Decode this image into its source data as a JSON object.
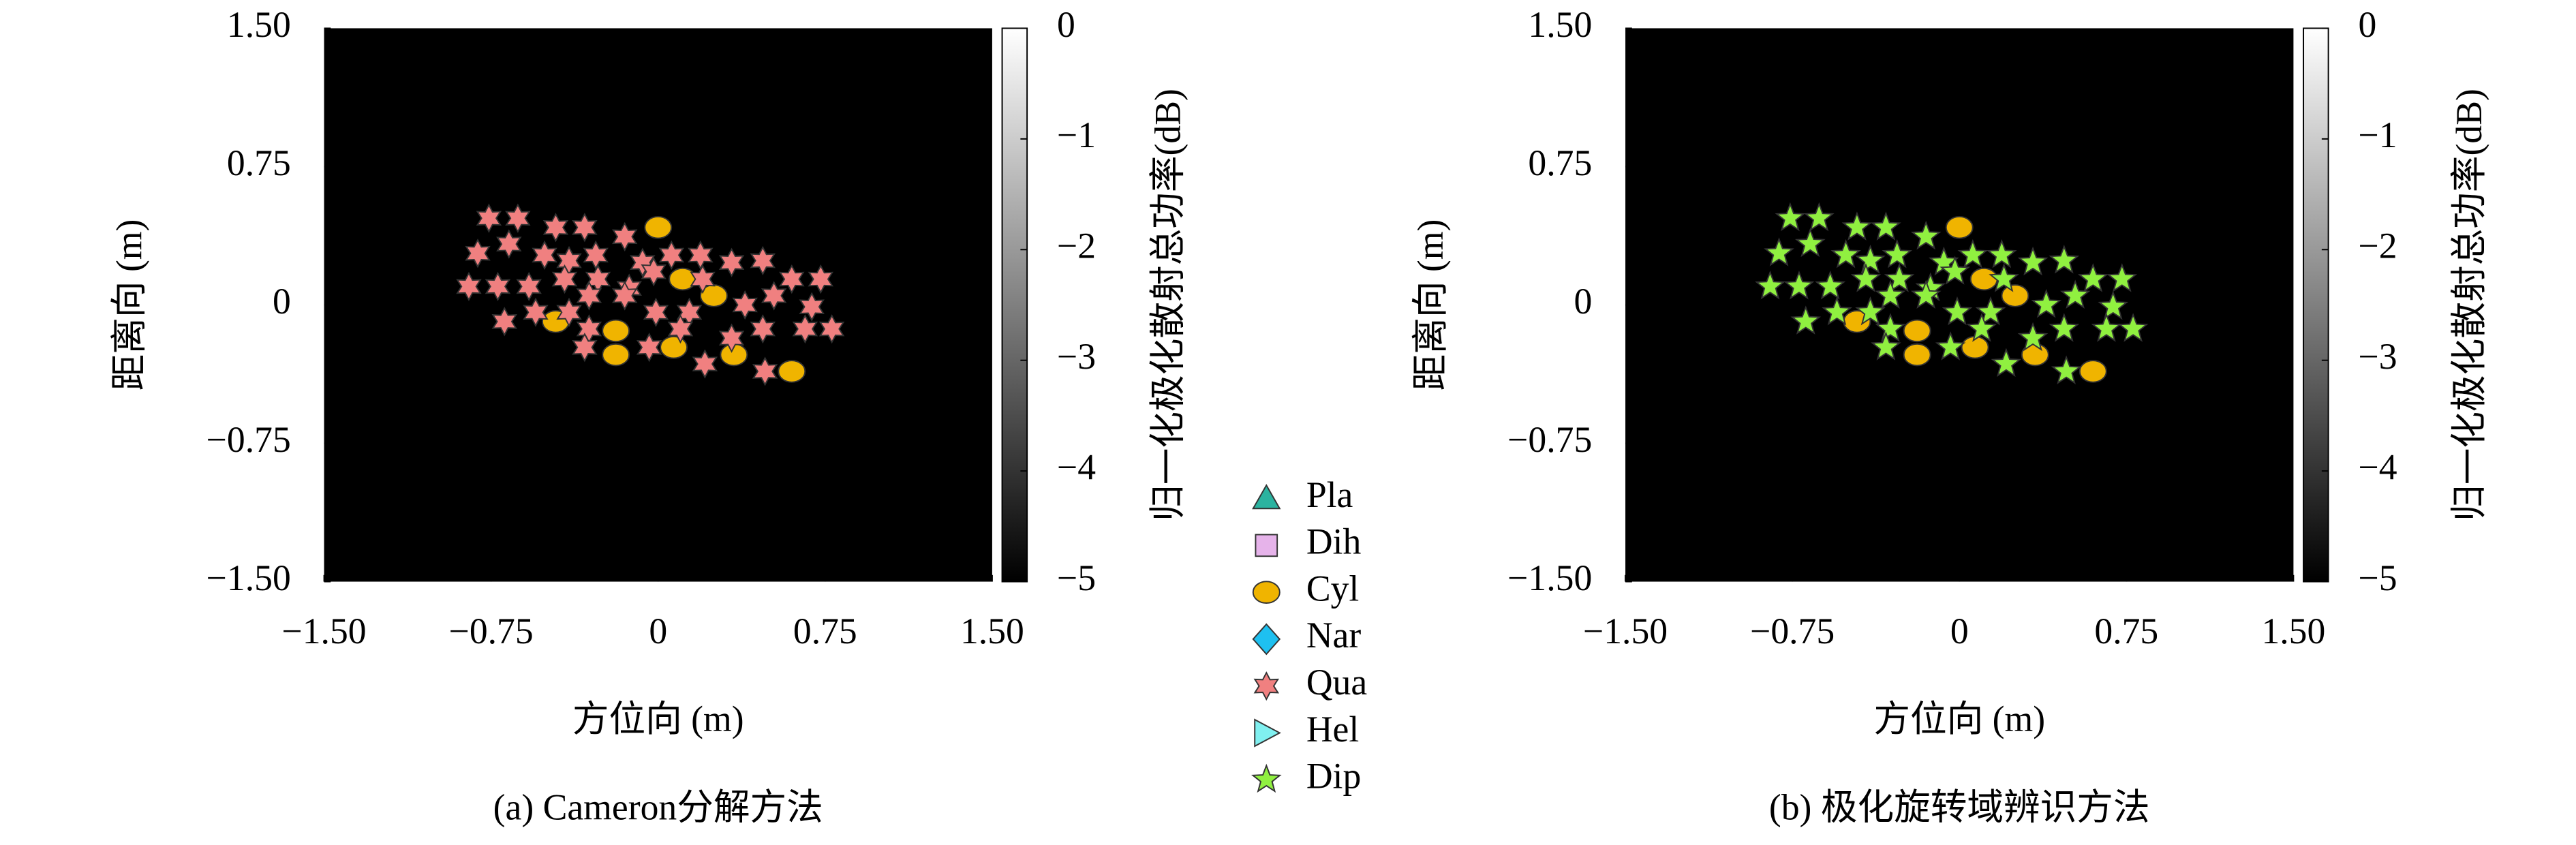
{
  "chart_data": [
    {
      "type": "scatter",
      "title": "(a) Cameron分解方法",
      "xlabel": "方位向 (m)",
      "ylabel": "距离向 (m)",
      "colorbar_label": "归一化极化散射总功率(dB)",
      "xlim": [
        -1.5,
        1.5
      ],
      "ylim": [
        -1.5,
        1.5
      ],
      "xticks": [
        {
          "value": -1.5,
          "label": "−1.50"
        },
        {
          "value": -0.75,
          "label": "−0.75"
        },
        0,
        0.75,
        {
          "value": 1.5,
          "label": "1.50"
        }
      ],
      "yticks": [
        {
          "value": -1.5,
          "label": "−1.50"
        },
        {
          "value": -0.75,
          "label": "−0.75"
        },
        0,
        0.75,
        {
          "value": 1.5,
          "label": "1.50"
        }
      ],
      "clim": [
        -5,
        0
      ],
      "cticks": [
        0,
        {
          "value": -1,
          "label": "−1"
        },
        {
          "value": -2,
          "label": "−2"
        },
        {
          "value": -3,
          "label": "−3"
        },
        {
          "value": -4,
          "label": "−4"
        },
        {
          "value": -5,
          "label": "−5"
        }
      ],
      "background": "#000000",
      "legend": true,
      "series": [
        {
          "name": "Pla",
          "color": "#2bb3a0",
          "marker": "triangle",
          "x": [],
          "y": []
        },
        {
          "name": "Dih",
          "color": "#e6b3ea",
          "marker": "square",
          "x": [],
          "y": []
        },
        {
          "name": "Cyl",
          "color": "#f0b400",
          "marker": "circle",
          "x": [
            0.0,
            0.11,
            0.25,
            -0.46,
            -0.19,
            -0.19,
            0.07,
            0.34,
            0.6
          ],
          "y": [
            0.42,
            0.14,
            0.05,
            -0.09,
            -0.14,
            -0.27,
            -0.23,
            -0.27,
            -0.36
          ]
        },
        {
          "name": "Nar",
          "color": "#1ec0f0",
          "marker": "diamond",
          "x": [],
          "y": []
        },
        {
          "name": "Qua",
          "color": "#f08080",
          "marker": "star6",
          "x": [
            -0.76,
            -0.63,
            -0.46,
            -0.33,
            -0.15,
            -0.81,
            -0.67,
            -0.51,
            -0.4,
            -0.28,
            -0.07,
            0.06,
            0.19,
            0.33,
            0.47,
            -0.72,
            -0.58,
            -0.42,
            -0.27,
            -0.13,
            -0.02,
            0.2,
            0.6,
            0.73,
            -0.85,
            -0.55,
            -0.4,
            -0.31,
            -0.15,
            -0.01,
            0.14,
            0.39,
            0.52,
            0.69,
            -0.69,
            -0.31,
            0.1,
            0.47,
            0.78,
            0.66,
            -0.33,
            -0.04,
            0.21,
            0.33,
            0.48
          ],
          "y": [
            0.47,
            0.47,
            0.42,
            0.42,
            0.37,
            0.28,
            0.33,
            0.27,
            0.24,
            0.27,
            0.23,
            0.27,
            0.27,
            0.23,
            0.24,
            0.1,
            0.1,
            0.14,
            0.14,
            0.09,
            0.18,
            0.14,
            0.14,
            0.14,
            0.1,
            -0.04,
            -0.04,
            0.05,
            0.05,
            -0.04,
            -0.04,
            0.0,
            0.05,
            -0.01,
            -0.09,
            -0.13,
            -0.13,
            -0.13,
            -0.13,
            -0.13,
            -0.23,
            -0.23,
            -0.32,
            -0.18,
            -0.36
          ]
        },
        {
          "name": "Hel",
          "color": "#80f0f0",
          "marker": "rtriangle",
          "x": [],
          "y": []
        },
        {
          "name": "Dip",
          "color": "#90f040",
          "marker": "star5",
          "x": [],
          "y": []
        }
      ]
    },
    {
      "type": "scatter",
      "title": "(b) 极化旋转域辨识方法",
      "xlabel": "方位向 (m)",
      "ylabel": "距离向 (m)",
      "colorbar_label": "归一化极化散射总功率(dB)",
      "xlim": [
        -1.5,
        1.5
      ],
      "ylim": [
        -1.5,
        1.5
      ],
      "xticks": [
        {
          "value": -1.5,
          "label": "−1.50"
        },
        {
          "value": -0.75,
          "label": "−0.75"
        },
        0,
        0.75,
        {
          "value": 1.5,
          "label": "1.50"
        }
      ],
      "yticks": [
        {
          "value": -1.5,
          "label": "−1.50"
        },
        {
          "value": -0.75,
          "label": "−0.75"
        },
        0,
        0.75,
        {
          "value": 1.5,
          "label": "1.50"
        }
      ],
      "clim": [
        -5,
        0
      ],
      "cticks": [
        0,
        {
          "value": -1,
          "label": "−1"
        },
        {
          "value": -2,
          "label": "−2"
        },
        {
          "value": -3,
          "label": "−3"
        },
        {
          "value": -4,
          "label": "−4"
        },
        {
          "value": -5,
          "label": "−5"
        }
      ],
      "background": "#000000",
      "legend": false,
      "series": [
        {
          "name": "Cyl",
          "color": "#f0b400",
          "marker": "circle",
          "x": [
            0.0,
            0.11,
            0.25,
            -0.46,
            -0.19,
            -0.19,
            0.07,
            0.34,
            0.6
          ],
          "y": [
            0.42,
            0.14,
            0.05,
            -0.09,
            -0.14,
            -0.27,
            -0.23,
            -0.27,
            -0.36
          ]
        },
        {
          "name": "Dip",
          "color": "#90f040",
          "marker": "star5",
          "x": [
            -0.76,
            -0.63,
            -0.46,
            -0.33,
            -0.15,
            -0.81,
            -0.67,
            -0.51,
            -0.4,
            -0.28,
            -0.07,
            0.06,
            0.19,
            0.33,
            0.47,
            -0.72,
            -0.58,
            -0.42,
            -0.27,
            -0.13,
            -0.02,
            0.2,
            0.6,
            0.73,
            -0.85,
            -0.55,
            -0.4,
            -0.31,
            -0.15,
            -0.01,
            0.14,
            0.39,
            0.52,
            0.69,
            -0.69,
            -0.31,
            0.1,
            0.47,
            0.78,
            0.66,
            -0.33,
            -0.04,
            0.21,
            0.33,
            0.48
          ],
          "y": [
            0.47,
            0.47,
            0.42,
            0.42,
            0.37,
            0.28,
            0.33,
            0.27,
            0.24,
            0.27,
            0.23,
            0.27,
            0.27,
            0.23,
            0.24,
            0.1,
            0.1,
            0.14,
            0.14,
            0.09,
            0.18,
            0.14,
            0.14,
            0.14,
            0.1,
            -0.04,
            -0.04,
            0.05,
            0.05,
            -0.04,
            -0.04,
            0.0,
            0.05,
            -0.01,
            -0.09,
            -0.13,
            -0.13,
            -0.13,
            -0.13,
            -0.13,
            -0.23,
            -0.23,
            -0.32,
            -0.18,
            -0.36
          ]
        }
      ]
    }
  ]
}
